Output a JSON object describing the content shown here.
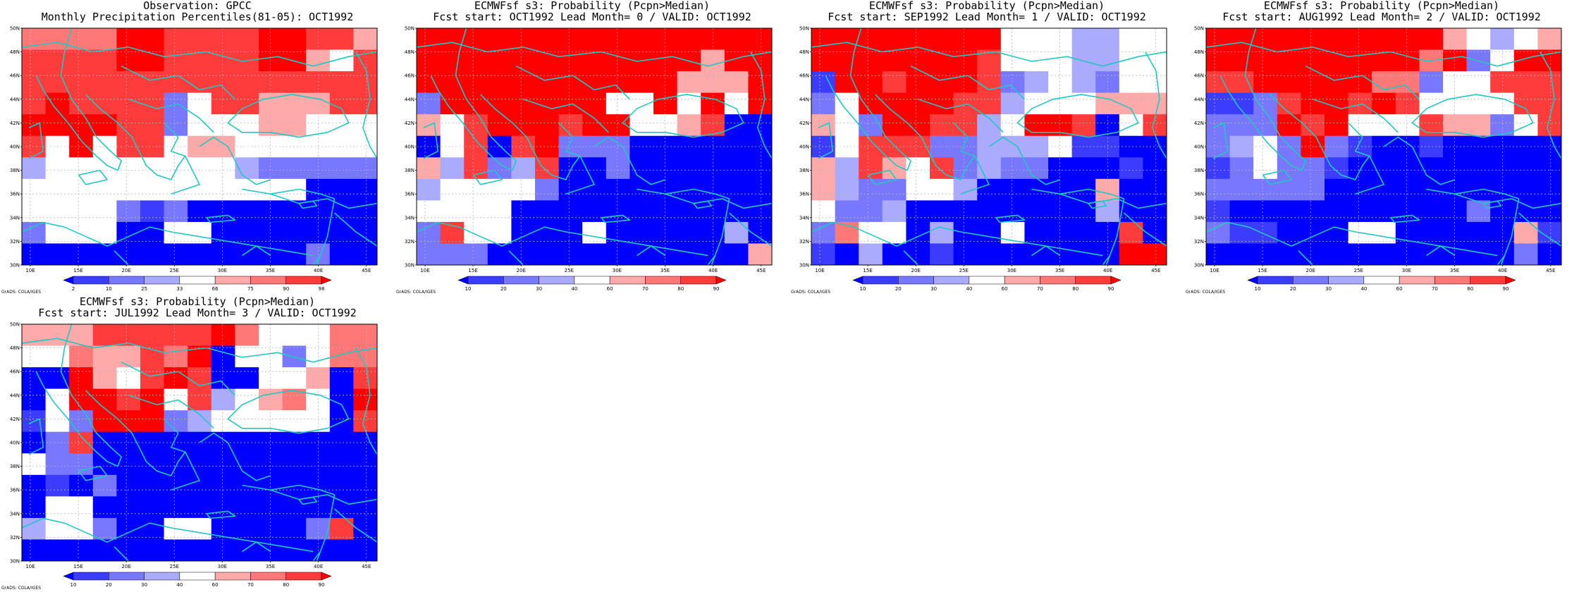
{
  "colors": {
    "coast": "#22c7c0",
    "grid": "#b8b8b8",
    "b3": "#0000ff",
    "b2": "#3c3cff",
    "b1": "#7878ff",
    "b0": "#aaaaff",
    "w": "#ffffff",
    "r0": "#ffaaaa",
    "r1": "#ff7878",
    "r2": "#ff3c3c",
    "r3": "#ff0000"
  },
  "common": {
    "lat_labels": [
      "50N",
      "48N",
      "46N",
      "44N",
      "42N",
      "40N",
      "38N",
      "36N",
      "34N",
      "32N",
      "30N"
    ],
    "lon_labels": [
      "10E",
      "15E",
      "20E",
      "25E",
      "30E",
      "35E",
      "40E",
      "45E"
    ],
    "credit": "GrADS: COLA/IGES"
  },
  "panels": [
    {
      "title1": "Observation: GPCC",
      "title2": "Monthly Precipitation Percentiles(81-05): OCT1992",
      "colorbar_labels": [
        "2",
        "10",
        "25",
        "33",
        "66",
        "75",
        "90",
        "98"
      ],
      "grid": [
        "r1 r1 r1 r1 r3 r3 r2 r2 r2 r2 r3 r3 r2 r2 r0",
        "r2 r2 r2 r2 r3 r3 r2 r2 r2 r2 r3 r3 r0 w  r2",
        "r2 r2 r2 r2 r2 r2 r2 r2 r2 r2 r2 r2 r2 r2 r2",
        "r2 r3 r2 r2 r2 r2 b1 w  r2 r2 r0 r0 r0 r2 r2",
        "r3 r3 r3 r3 r2 r2 b1 w  w  w  r0 r0 w  w  w ",
        "r2 w  r3 w  r2 r2 w  r0 r0 w  w  w  w  w  w ",
        "b0 w  w  w  w  w  w  w  w  b0 b1 b1 b1 b1 b1",
        "w  w  w  w  w  w  w  w  w  w  w  w  b3 b3 b3",
        "w  w  w  w  b1 b2 b1 b3 b3 b3 b3 b3 b3 b3 b3",
        "b1 w  w  w  b3 b3 w  w  b3 b3 b3 b3 b3 b3 b3",
        "b3 b3 b3 b3 b3 b3 b3 b3 b3 b3 b3 b3 b1 b3 b3"
      ]
    },
    {
      "title1": "ECMWFsf s3: Probability (Pcpn>Median)",
      "title2": "Fcst start: OCT1992  Lead Month= 0 / VALID: OCT1992",
      "colorbar_labels": [
        "10",
        "20",
        "30",
        "40",
        "60",
        "70",
        "80",
        "90"
      ],
      "grid": [
        "r3 r3 r3 r3 r3 r3 r3 r3 r3 r3 r3 r3 r3 r3 r3",
        "r3 r3 r3 r3 r3 r3 r3 r3 r3 r3 r3 r3 r0 r3 r3",
        "r3 r3 r3 r3 r3 r3 r3 r3 r3 r3 r3 r0 r0 r0 r3",
        "b1 r3 r3 r3 r3 r3 r3 r3 w  w  r3 w  r3 w  r3",
        "r0 w  r2 r3 r3 r3 r2 r3 r3 w  w  r0 r2 b3 b3",
        "b3 w  r2 b3 r2 r3 b1 b1 b1 b3 b3 b3 b3 b3 b3",
        "r0 b0 r2 b1 b0 r2 b3 b3 b1 b3 b3 b3 b3 b3 b3",
        "b0 w  w  w  w  b1 b3 b3 b3 b3 b3 b3 b3 b3 b3",
        "w  w  w  w  b3 b3 b3 b3 b3 b3 b3 b3 b3 b3 b3",
        "b1 r2 w  w  b3 b3 b3 w  b3 b3 b3 b3 b3 b0 b3",
        "b1 b1 b1 b3 b3 b3 b3 b3 b3 b3 b3 b3 b3 b3 r0"
      ]
    },
    {
      "title1": "ECMWFsf s3: Probability (Pcpn>Median)",
      "title2": "Fcst start: SEP1992  Lead Month= 1 / VALID: OCT1992",
      "colorbar_labels": [
        "10",
        "20",
        "30",
        "40",
        "60",
        "70",
        "80",
        "90"
      ],
      "grid": [
        "r3 r3 r3 r3 r3 r3 r3 r3 w  w  w  b0 b0 w  w ",
        "r3 r3 r3 r3 r3 r3 r3 r2 w  w  w  b0 b0 w  w ",
        "b2 r3 r3 r2 r3 r3 r3 r2 b1 b0 w  b0 b1 w  w ",
        "b1 w  r3 r3 r3 r3 r2 r2 b0 w  w  w  r0 r0 r0",
        "r0 w  b1 r3 r3 r2 r2 b0 w  r3 r3 r2 b3 w  r2",
        "b2 w  r2 r2 r2 b1 b1 b0 b0 b0 w  b2 b2 b3 b3",
        "r0 b0 r2 r0 w  r2 b1 b0 b1 b1 b3 b3 b3 b2 b3",
        "r0 b0 b1 b1 w  w  b0 b3 b3 b3 b3 b3 r0 b3 b3",
        "w  b1 b1 b0 b3 b3 b3 b3 b3 b3 b3 b3 b0 b3 b3",
        "b1 r1 w  w  b3 b0 b3 b3 w  b3 b3 b3 b3 r2 b3",
        "b2 b3 b0 b3 b3 b2 b3 b3 b3 b3 b3 b3 b3 r3 r3"
      ]
    },
    {
      "title1": "ECMWFsf s3: Probability (Pcpn>Median)",
      "title2": "Fcst start: AUG1992  Lead Month= 2 / VALID: OCT1992",
      "colorbar_labels": [
        "10",
        "20",
        "30",
        "40",
        "60",
        "70",
        "80",
        "90"
      ],
      "grid": [
        "r3 r3 r3 r3 r3 r3 r3 r3 r3 r3 r0 w  b0 w  r0",
        "r3 r3 r3 r3 r3 r3 r3 r3 r3 r1 r3 b1 w  r3 r3",
        "r2 r2 r3 r3 r3 r3 r3 r1 r1 b1 w  w  r2 r2 r2",
        "b2 b2 b1 r2 r3 r3 r2 r3 r2 w  w  w  w  r2 r2",
        "b1 b1 b1 r3 r2 r3 w  w  w  r2 r0 r0 b1 w  r2",
        "b1 b0 w  b1 r3 b1 b2 b3 b3 b2 b3 b3 b3 b3 b3",
        "b2 b1 w  b1 b1 b2 b3 b3 b3 b3 b3 b3 b3 b3 b3",
        "b1 b1 b1 b1 b1 b3 b3 b3 b3 b3 b3 b3 b3 b3 b3",
        "b2 b3 b3 b3 b3 b3 b3 b3 b3 b3 b3 b1 b3 b3 b3",
        "b1 b2 b2 b3 b3 b3 w  w  b3 b3 b3 b3 b3 r0 b2",
        "b3 b3 b3 b3 b3 b3 b3 b3 b3 b3 b3 b3 b3 b1 b3"
      ]
    },
    {
      "title1": "ECMWFsf s3: Probability (Pcpn>Median)",
      "title2": "Fcst start: JUL1992  Lead Month= 3 / VALID: OCT1992",
      "colorbar_labels": [
        "10",
        "20",
        "30",
        "40",
        "60",
        "70",
        "80",
        "90"
      ],
      "grid": [
        "r0 r0 r0 r2 r2 r2 r2 r2 r3 r1 w  w  w  r1 r1",
        "w  w  r1 r0 r0 r2 r1 r3 b3 w  w  b1 w  r1 r1",
        "b3 b3 r3 r0 w  r2 r3 r2 b3 b3 w  w  r0 b3 r2",
        "b3 w  r3 r3 r2 r3 w  r2 b0 w  r0 r1 w  b3 r3",
        "b2 w  b1 r3 r3 r3 b1 b0 w  w  w  w  w  b3 r2",
        "b3 b1 r2 b3 b3 b3 b3 b3 b3 b3 b3 b3 b3 b3 b3",
        "w  b1 b1 b3 b3 b3 b3 b3 b3 b3 b3 b3 b3 b3 b3",
        "b3 b2 b3 b1 b3 b3 b3 b3 b3 b3 b3 b3 b3 b3 b3",
        "b3 w  w  b3 b3 b3 b3 b3 b3 b3 b3 b3 b3 b3 b3",
        "b0 w  w  b1 b3 b3 w  w  b3 b3 b3 b3 b1 r2 b3",
        "b3 b3 b3 b3 b3 b3 b3 b3 b3 b3 b3 b3 b3 b3 b3"
      ]
    }
  ]
}
